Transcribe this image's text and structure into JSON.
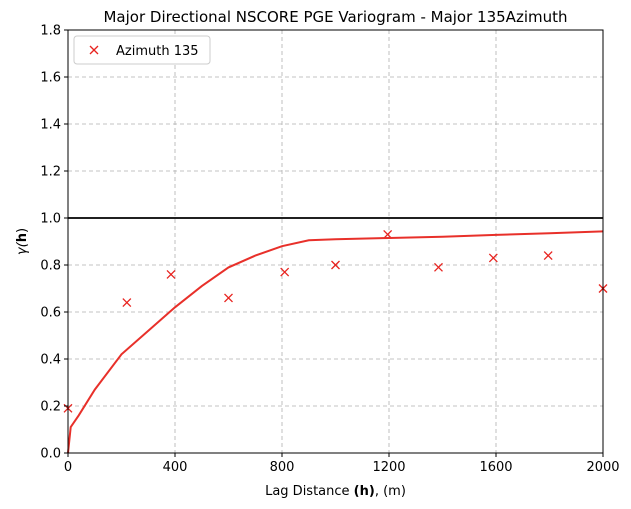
{
  "chart_data": {
    "type": "scatter",
    "title": "Major Directional NSCORE PGE Variogram - Major 135Azimuth",
    "xlabel": {
      "prefix": "Lag Distance ",
      "bold": "(h)",
      "suffix": ", (m)"
    },
    "ylabel": {
      "prefix": "γ(",
      "bold": "h",
      "suffix": ")"
    },
    "xlim": [
      0,
      2000
    ],
    "ylim": [
      0.0,
      1.8
    ],
    "xticks": [
      0,
      400,
      800,
      1200,
      1600,
      2000
    ],
    "xtick_labels": [
      "0",
      "400",
      "800",
      "1200",
      "1600",
      "2000"
    ],
    "yticks": [
      0.0,
      0.2,
      0.4,
      0.6,
      0.8,
      1.0,
      1.2,
      1.4,
      1.6,
      1.8
    ],
    "ytick_labels": [
      "0.0",
      "0.2",
      "0.4",
      "0.6",
      "0.8",
      "1.0",
      "1.2",
      "1.4",
      "1.6",
      "1.8"
    ],
    "grid": true,
    "legend_position": "top-left",
    "sill": 1.0,
    "series": [
      {
        "name": "Azimuth 135",
        "kind": "scatter",
        "marker": "x",
        "color": "#e8231f",
        "x": [
          0,
          220,
          385,
          600,
          810,
          1000,
          1195,
          1385,
          1590,
          1795,
          2000
        ],
        "y": [
          0.19,
          0.64,
          0.76,
          0.66,
          0.77,
          0.8,
          0.93,
          0.79,
          0.83,
          0.84,
          0.7
        ]
      },
      {
        "kind": "line",
        "color": "#e8302a",
        "x": [
          0,
          10,
          40,
          100,
          200,
          300,
          400,
          500,
          600,
          700,
          800,
          900,
          1000,
          1200,
          1400,
          1600,
          1800,
          2000
        ],
        "y": [
          0.0,
          0.11,
          0.16,
          0.27,
          0.42,
          0.52,
          0.62,
          0.71,
          0.79,
          0.84,
          0.88,
          0.905,
          0.91,
          0.915,
          0.92,
          0.928,
          0.935,
          0.943
        ]
      }
    ],
    "sill_color": "#000000",
    "grid_color": "#b0b0b0"
  }
}
